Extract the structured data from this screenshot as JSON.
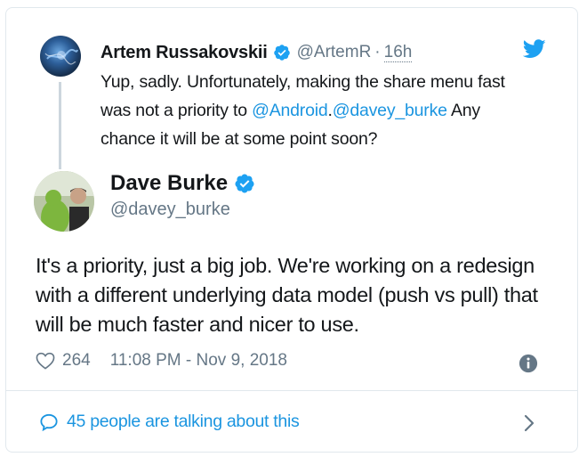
{
  "reply": {
    "name": "Artem Russakovskii",
    "handle": "@ArtemR",
    "separator": "·",
    "time": "16h",
    "text_before": "Yup, sadly. Unfortunately, making the share menu fast was not a priority to ",
    "mention_1": "@Android",
    "mention_sep": ".",
    "mention_2": "@davey_burke",
    "text_after": " Any chance it will be at some point soon?"
  },
  "tweet": {
    "name": "Dave Burke",
    "handle": "@davey_burke",
    "text": "It's a priority, just a big job. We're working on a redesign with a different underlying data model (push vs pull) that will be much faster and nicer to use.",
    "likes": "264",
    "timestamp": "11:08 PM - Nov 9, 2018"
  },
  "footer": {
    "talking": "45 people are talking about this"
  },
  "colors": {
    "link": "#1b95e0",
    "secondary": "#657786",
    "border": "#e1e8ed",
    "verified": "#1da1f2"
  },
  "icons": [
    "verified-badge-icon",
    "twitter-bird-icon",
    "heart-icon",
    "info-icon",
    "speech-bubble-icon",
    "chevron-right-icon"
  ]
}
